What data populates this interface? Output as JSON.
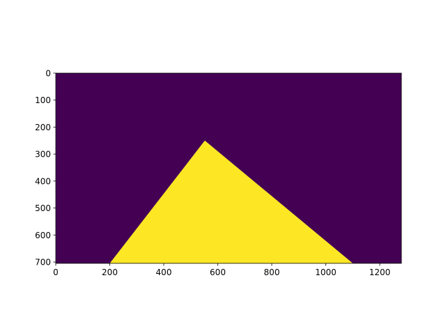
{
  "chart_data": {
    "type": "heatmap",
    "description_kind": "binary mask image (imshow)",
    "image_width": 1280,
    "image_height": 705,
    "xlim": [
      0,
      1280
    ],
    "ylim": [
      705,
      0
    ],
    "x_ticks": [
      0,
      200,
      400,
      600,
      800,
      1000,
      1200
    ],
    "y_ticks": [
      0,
      100,
      200,
      300,
      400,
      500,
      600,
      700
    ],
    "x_tick_labels": [
      "0",
      "200",
      "400",
      "600",
      "800",
      "1000",
      "1200"
    ],
    "y_tick_labels": [
      "0",
      "100",
      "200",
      "300",
      "400",
      "500",
      "600",
      "700"
    ],
    "background_value": 0,
    "mask_value": 1,
    "mask_polygon": [
      [
        200,
        705
      ],
      [
        552,
        250
      ],
      [
        1100,
        705
      ]
    ],
    "colors": {
      "background": "#440154",
      "mask": "#fde725"
    },
    "title": "",
    "xlabel": "",
    "ylabel": "",
    "grid": false,
    "legend": "none"
  }
}
